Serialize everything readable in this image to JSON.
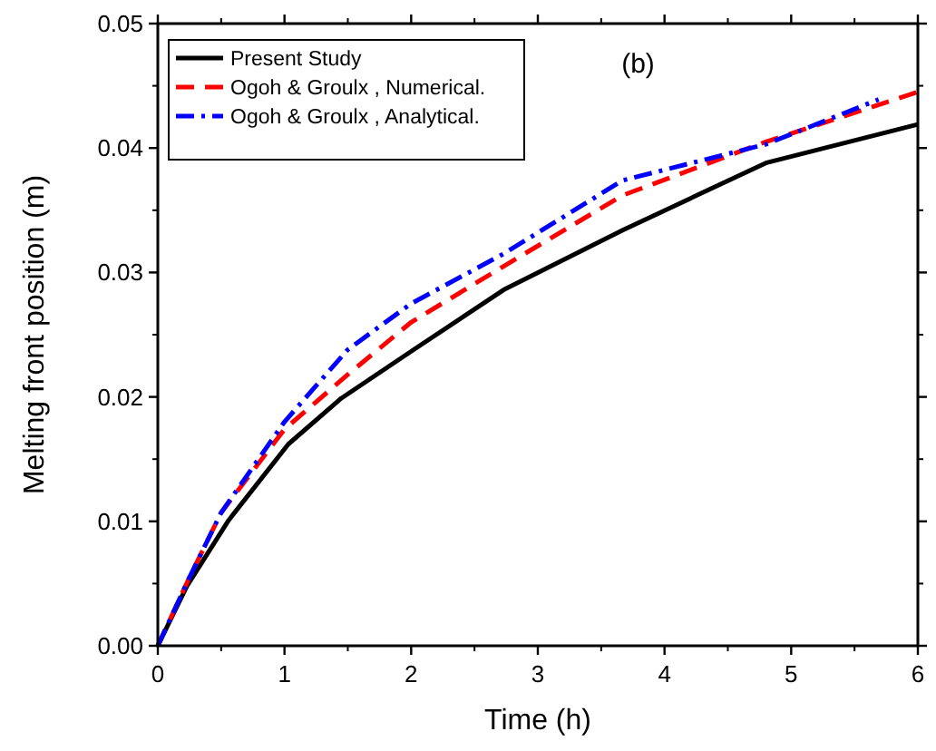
{
  "chart_data": {
    "type": "line",
    "xlabel": "Time (h)",
    "ylabel": "Melting front position (m)",
    "annotations": [
      "(b)"
    ],
    "legend": "top left",
    "xlim": [
      0,
      6
    ],
    "xticks": [
      0,
      1,
      2,
      3,
      4,
      5,
      6
    ],
    "ylim": [
      0,
      0.05
    ],
    "yticks": [
      {
        "value": 0,
        "label": "0.00"
      },
      {
        "value": 0.01,
        "label": "0.01"
      },
      {
        "value": 0.02,
        "label": "0.02"
      },
      {
        "value": 0.03,
        "label": "0.03"
      },
      {
        "value": 0.04,
        "label": "0.04"
      },
      {
        "value": 0.05,
        "label": "0.05"
      }
    ],
    "series": [
      {
        "name": "Present Study",
        "color": "#000000",
        "line_style": "solid",
        "x": [
          0,
          0.23,
          0.56,
          1.03,
          1.45,
          2.02,
          2.73,
          3.67,
          4.8,
          6
        ],
        "values": [
          0,
          0.0048,
          0.0101,
          0.0162,
          0.0199,
          0.0238,
          0.0286,
          0.0334,
          0.0388,
          0.0419
        ]
      },
      {
        "name": "Ogoh & Groulx , Numerical.",
        "color": "#ff0000",
        "line_style": "dashed",
        "x": [
          0,
          0.25,
          0.5,
          1,
          1.5,
          2,
          2.73,
          3.67,
          4.8,
          6
        ],
        "values": [
          0,
          0.0055,
          0.0107,
          0.0174,
          0.0218,
          0.026,
          0.0305,
          0.0362,
          0.0405,
          0.0445
        ]
      },
      {
        "name": "Ogoh & Groulx , Analytical.",
        "color": "#0000ff",
        "line_style": "dashdot",
        "x": [
          0,
          0.25,
          0.5,
          1,
          1.5,
          2,
          2.73,
          3.67,
          4.8,
          5.69
        ],
        "values": [
          0,
          0.0055,
          0.0107,
          0.018,
          0.0238,
          0.0275,
          0.0315,
          0.0374,
          0.0403,
          0.0439
        ]
      }
    ]
  }
}
